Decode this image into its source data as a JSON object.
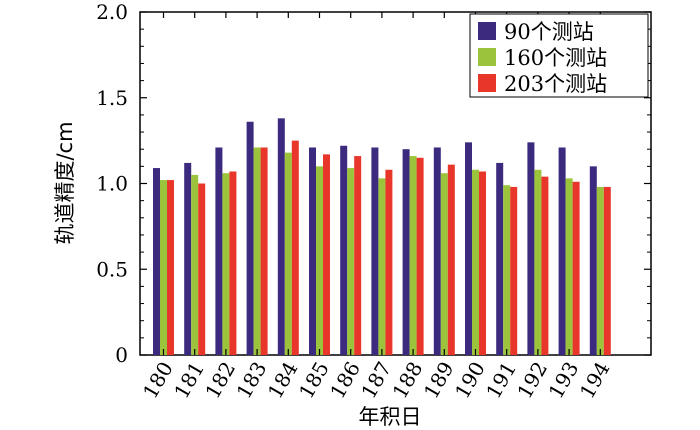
{
  "chart_data": {
    "type": "bar",
    "categories": [
      "180",
      "181",
      "182",
      "183",
      "184",
      "185",
      "186",
      "187",
      "188",
      "189",
      "190",
      "191",
      "192",
      "193",
      "194"
    ],
    "series": [
      {
        "name": "90个测站",
        "color": "#3b2a7e",
        "values": [
          1.09,
          1.12,
          1.21,
          1.36,
          1.38,
          1.21,
          1.22,
          1.21,
          1.2,
          1.21,
          1.24,
          1.12,
          1.24,
          1.21,
          1.1
        ]
      },
      {
        "name": "160个测站",
        "color": "#9bc43c",
        "values": [
          1.02,
          1.05,
          1.06,
          1.21,
          1.18,
          1.1,
          1.09,
          1.03,
          1.16,
          1.06,
          1.08,
          0.99,
          1.08,
          1.03,
          0.98
        ]
      },
      {
        "name": "203个测站",
        "color": "#e8372a",
        "values": [
          1.02,
          1.0,
          1.07,
          1.21,
          1.25,
          1.17,
          1.16,
          1.08,
          1.15,
          1.11,
          1.07,
          0.98,
          1.04,
          1.01,
          0.98
        ]
      }
    ],
    "xlabel": "年积日",
    "ylabel": "轨道精度/cm",
    "ylim": [
      0,
      2.0
    ],
    "yticks": [
      "0",
      "0.5",
      "1.0",
      "1.5",
      "2.0"
    ],
    "legend": "top-right",
    "grid": false
  }
}
